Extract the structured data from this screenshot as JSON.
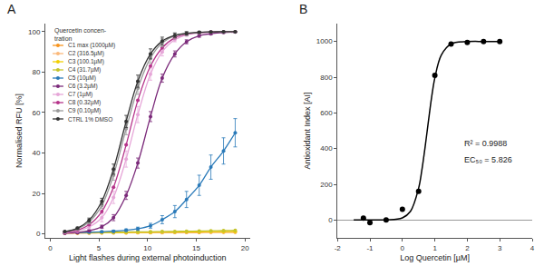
{
  "chart_data": [
    {
      "type": "line",
      "title": "A",
      "x_label": "Light flashes during external photoinduction",
      "y_label": "Normalised RFU [%]",
      "legend_title": "Quercetin concen-\ntration",
      "legend": "upper left",
      "marker": "circle",
      "grid": false,
      "x": [
        1.5,
        2.8,
        4.0,
        5.3,
        6.5,
        7.8,
        9.0,
        10.3,
        11.5,
        12.8,
        14.0,
        15.3,
        16.5,
        17.8,
        19.0
      ],
      "xlim": [
        -0.5,
        20.5
      ],
      "xticks": [
        0,
        5,
        10,
        15,
        20
      ],
      "ylim": [
        -2,
        104
      ],
      "yticks": [
        0,
        20,
        40,
        60,
        80,
        100
      ],
      "series": [
        {
          "name": "C1 max (1000µM)",
          "color": "#f7941d",
          "values": [
            0.3,
            0.4,
            0.4,
            0.5,
            0.5,
            0.5,
            0.6,
            0.6,
            0.6,
            0.7,
            0.7,
            0.7,
            0.8,
            0.8,
            0.8
          ]
        },
        {
          "name": "C2 (316.5µM)",
          "color": "#fbb97a",
          "values": [
            0.4,
            0.4,
            0.5,
            0.5,
            0.6,
            0.6,
            0.6,
            0.7,
            0.7,
            0.8,
            0.8,
            0.9,
            0.9,
            1.0,
            1.0
          ]
        },
        {
          "name": "C3 (100.1µM)",
          "color": "#f2cf00",
          "values": [
            0.5,
            0.5,
            0.6,
            0.6,
            0.7,
            0.7,
            0.8,
            0.8,
            0.9,
            0.9,
            1.0,
            1.0,
            1.1,
            1.1,
            1.2
          ]
        },
        {
          "name": "C4 (31.7µM)",
          "color": "#c4c42c",
          "values": [
            0.6,
            0.6,
            0.7,
            0.8,
            0.8,
            0.9,
            1.0,
            1.0,
            1.1,
            1.2,
            1.3,
            1.4,
            1.5,
            1.6,
            1.7
          ]
        },
        {
          "name": "C5 (10µM)",
          "color": "#2a7ab9",
          "values": [
            0.5,
            0.6,
            0.8,
            1.0,
            1.3,
            1.8,
            2.5,
            4.0,
            7.0,
            11.0,
            17.0,
            24.0,
            33.0,
            41.0,
            50.0
          ],
          "errors": [
            0.3,
            0.3,
            0.3,
            0.4,
            0.5,
            0.6,
            0.8,
            1.2,
            2.0,
            3.0,
            4.0,
            5.0,
            6.0,
            6.5,
            7.0
          ]
        },
        {
          "name": "C6 (3.2µM)",
          "color": "#7b2a7a",
          "values": [
            0.3,
            0.6,
            1.5,
            3.5,
            8.0,
            19.0,
            35.0,
            58.0,
            77.0,
            89.0,
            95.0,
            98.0,
            99.0,
            99.6,
            99.8
          ],
          "errors": [
            0.2,
            0.3,
            0.5,
            0.8,
            1.5,
            2.0,
            2.5,
            2.5,
            2.0,
            1.5,
            1.0,
            0.8,
            0.5,
            0.4,
            0.3
          ]
        },
        {
          "name": "C7 (1µM)",
          "color": "#e6a6d8",
          "values": [
            0.6,
            1.4,
            3.4,
            8.0,
            18.0,
            37.0,
            59.0,
            79.0,
            90.0,
            96.0,
            98.5,
            99.4,
            99.8,
            100,
            100
          ],
          "errors": [
            0.3,
            0.5,
            1.0,
            2.0,
            3.0,
            4.0,
            4.0,
            3.0,
            2.0,
            1.0,
            0.8,
            0.5,
            0.3,
            0.2,
            0.2
          ]
        },
        {
          "name": "C8 (0.32µM)",
          "color": "#b5338a",
          "values": [
            0.8,
            1.8,
            4.5,
            11.0,
            23.0,
            44.0,
            66.0,
            83.0,
            92.0,
            97.0,
            98.8,
            99.5,
            99.8,
            100,
            100
          ]
        },
        {
          "name": "C9 (0.10µM)",
          "color": "#9a9a9a",
          "values": [
            1.0,
            2.4,
            5.9,
            14.0,
            29.0,
            52.0,
            72.0,
            87.0,
            94.5,
            98.0,
            99.0,
            99.6,
            99.8,
            100,
            100
          ],
          "errors": [
            0.3,
            0.5,
            1.0,
            1.5,
            2.5,
            3.0,
            3.0,
            2.5,
            2.0,
            1.5,
            1.0,
            0.5,
            0.3,
            0.2,
            0.2
          ]
        },
        {
          "name": "CTRL 1% DMSO",
          "color": "#333333",
          "values": [
            1.1,
            2.8,
            6.8,
            16.1,
            32.0,
            55.6,
            75.5,
            89.0,
            95.3,
            98.2,
            99.2,
            99.7,
            99.9,
            100,
            100
          ],
          "errors": [
            0.3,
            0.5,
            1.0,
            1.5,
            2.5,
            3.0,
            3.0,
            2.5,
            2.0,
            1.0,
            0.8,
            0.5,
            0.3,
            0.2,
            0.2
          ]
        }
      ]
    },
    {
      "type": "scatter",
      "title": "B",
      "x_label": "Log Quercetin [µM]",
      "y_label": "Antioxidant Index [AI]",
      "annotations": [
        "R² = 0.9988",
        "EC₅₀ = 5.826"
      ],
      "grid": false,
      "xlim": [
        -2,
        4
      ],
      "xticks": [
        -2,
        -1,
        0,
        1,
        2,
        3,
        4
      ],
      "ylim": [
        -100,
        1100
      ],
      "yticks": [
        0,
        200,
        400,
        600,
        800,
        1000
      ],
      "series": [
        {
          "type": "scatter",
          "marker": "circle",
          "color": "#000000",
          "x": [
            -1.2,
            -1,
            -0.5,
            0,
            0.5,
            1,
            1.5,
            2,
            2.5,
            3
          ],
          "values": [
            10,
            -15,
            0,
            60,
            160,
            810,
            985,
            995,
            1000,
            1000
          ]
        },
        {
          "type": "line",
          "line_style": "solid",
          "color": "#000000",
          "x": [
            -1.5,
            -1,
            -0.5,
            0,
            0.25,
            0.5,
            0.6,
            0.7,
            0.8,
            0.9,
            1.0,
            1.2,
            1.5,
            2,
            2.5,
            3
          ],
          "values": [
            0,
            0,
            1,
            12,
            49,
            178,
            279,
            408,
            550,
            686,
            796,
            924,
            986,
            999,
            1000,
            1000
          ]
        }
      ]
    }
  ]
}
